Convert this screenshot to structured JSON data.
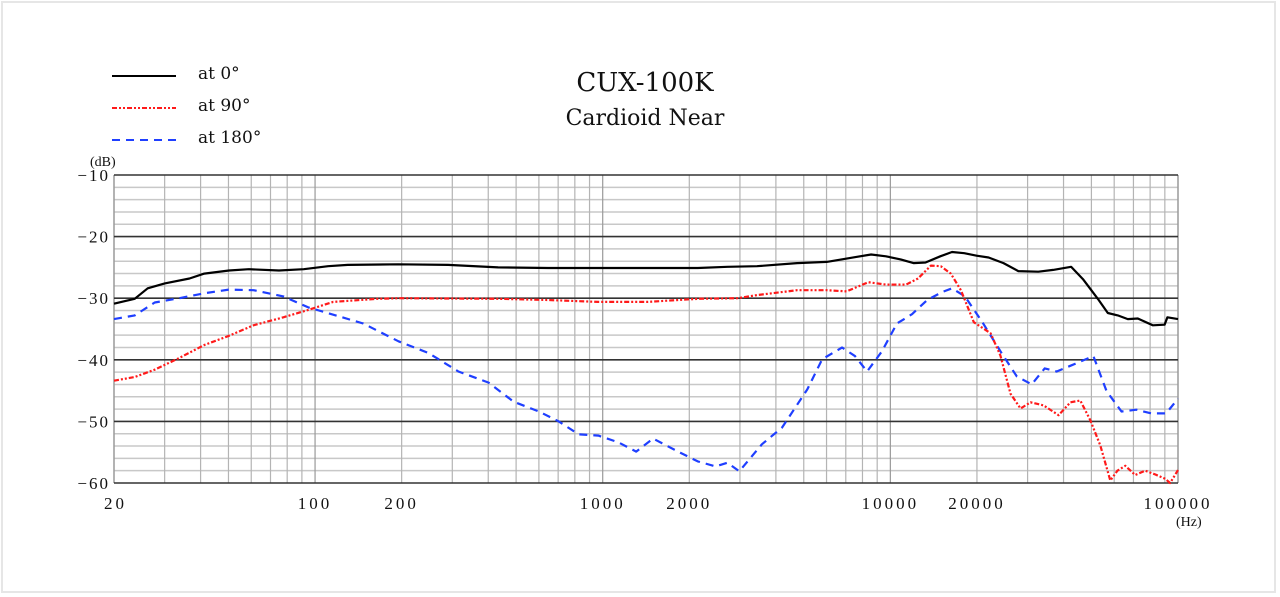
{
  "chart_data": {
    "type": "line",
    "title": "CUX-100K",
    "subtitle": "Cardioid Near",
    "xlabel": "(Hz)",
    "ylabel": "(dB)",
    "xscale": "log",
    "xlim": [
      20,
      100000
    ],
    "ylim": [
      -60,
      -10
    ],
    "x_tick_labels": [
      "20",
      "100",
      "200",
      "1000",
      "2000",
      "10000",
      "20000",
      "100000"
    ],
    "y_tick_labels": [
      "-10",
      "-20",
      "-30",
      "-40",
      "-50",
      "-60"
    ],
    "grid": true,
    "legend_position": "top-left",
    "series": [
      {
        "name": "at 0°",
        "color": "#000000",
        "style": "solid",
        "points": [
          [
            20,
            -30.9
          ],
          [
            23.6,
            -30.1
          ],
          [
            26.2,
            -28.4
          ],
          [
            30.0,
            -27.6
          ],
          [
            36.6,
            -26.8
          ],
          [
            41.2,
            -26.0
          ],
          [
            50.2,
            -25.5
          ],
          [
            58.9,
            -25.3
          ],
          [
            74.9,
            -25.5
          ],
          [
            91.3,
            -25.3
          ],
          [
            111,
            -24.8
          ],
          [
            130,
            -24.6
          ],
          [
            195,
            -24.5
          ],
          [
            290,
            -24.6
          ],
          [
            433,
            -25.0
          ],
          [
            646,
            -25.1
          ],
          [
            963,
            -25.1
          ],
          [
            1436,
            -25.1
          ],
          [
            2141,
            -25.1
          ],
          [
            2714,
            -24.9
          ],
          [
            3440,
            -24.8
          ],
          [
            4739,
            -24.3
          ],
          [
            6006,
            -24.1
          ],
          [
            7612,
            -23.3
          ],
          [
            8569,
            -22.9
          ],
          [
            9647,
            -23.2
          ],
          [
            10860,
            -23.7
          ],
          [
            12040,
            -24.3
          ],
          [
            13250,
            -24.2
          ],
          [
            14910,
            -23.2
          ],
          [
            16380,
            -22.5
          ],
          [
            18080,
            -22.7
          ],
          [
            19950,
            -23.1
          ],
          [
            21960,
            -23.4
          ],
          [
            24740,
            -24.3
          ],
          [
            27850,
            -25.6
          ],
          [
            32690,
            -25.7
          ],
          [
            36810,
            -25.4
          ],
          [
            42510,
            -24.9
          ],
          [
            46720,
            -26.9
          ],
          [
            52620,
            -30.1
          ],
          [
            57010,
            -32.4
          ],
          [
            61770,
            -32.8
          ],
          [
            66920,
            -33.4
          ],
          [
            72500,
            -33.3
          ],
          [
            81640,
            -34.4
          ],
          [
            89800,
            -34.3
          ],
          [
            91900,
            -33.1
          ],
          [
            100000,
            -33.4
          ]
        ]
      },
      {
        "name": "at 90°",
        "color": "#ff1a1a",
        "style": "dash-dot-dot",
        "points": [
          [
            20,
            -43.4
          ],
          [
            23.6,
            -42.8
          ],
          [
            27.7,
            -41.6
          ],
          [
            33.7,
            -39.7
          ],
          [
            41.2,
            -37.6
          ],
          [
            50.2,
            -36.1
          ],
          [
            61.1,
            -34.4
          ],
          [
            77.6,
            -33.1
          ],
          [
            94.7,
            -31.9
          ],
          [
            115.5,
            -30.6
          ],
          [
            165,
            -30.1
          ],
          [
            195,
            -30.0
          ],
          [
            433,
            -30.1
          ],
          [
            646,
            -30.3
          ],
          [
            963,
            -30.6
          ],
          [
            1436,
            -30.6
          ],
          [
            2141,
            -30.1
          ],
          [
            2946,
            -30.0
          ],
          [
            3440,
            -29.5
          ],
          [
            4739,
            -28.7
          ],
          [
            6006,
            -28.7
          ],
          [
            7046,
            -28.9
          ],
          [
            8385,
            -27.4
          ],
          [
            9647,
            -27.8
          ],
          [
            11340,
            -27.8
          ],
          [
            12480,
            -26.8
          ],
          [
            13840,
            -24.7
          ],
          [
            14980,
            -24.8
          ],
          [
            16230,
            -26.0
          ],
          [
            17590,
            -28.7
          ],
          [
            19500,
            -33.9
          ],
          [
            22310,
            -35.7
          ],
          [
            24140,
            -39.3
          ],
          [
            26170,
            -45.5
          ],
          [
            28340,
            -47.9
          ],
          [
            30700,
            -46.9
          ],
          [
            34100,
            -47.4
          ],
          [
            38440,
            -49.0
          ],
          [
            42250,
            -46.9
          ],
          [
            45760,
            -46.6
          ],
          [
            49560,
            -49.8
          ],
          [
            53700,
            -53.9
          ],
          [
            58170,
            -59.6
          ],
          [
            61550,
            -58.0
          ],
          [
            65560,
            -57.2
          ],
          [
            70970,
            -58.7
          ],
          [
            76880,
            -58.0
          ],
          [
            83270,
            -58.6
          ],
          [
            90200,
            -59.3
          ],
          [
            93900,
            -60.0
          ],
          [
            100000,
            -57.9
          ]
        ]
      },
      {
        "name": "at 180°",
        "color": "#1f3fff",
        "style": "dashed",
        "points": [
          [
            20,
            -33.4
          ],
          [
            23.6,
            -32.8
          ],
          [
            27.7,
            -30.7
          ],
          [
            33.7,
            -30.0
          ],
          [
            41.2,
            -29.2
          ],
          [
            50.2,
            -28.6
          ],
          [
            61.1,
            -28.7
          ],
          [
            77.6,
            -29.7
          ],
          [
            94.7,
            -31.5
          ],
          [
            120.3,
            -32.9
          ],
          [
            147,
            -34.1
          ],
          [
            195,
            -37.0
          ],
          [
            248,
            -38.9
          ],
          [
            315,
            -41.9
          ],
          [
            401,
            -43.7
          ],
          [
            490,
            -46.8
          ],
          [
            600,
            -48.4
          ],
          [
            703,
            -50.0
          ],
          [
            824,
            -52.1
          ],
          [
            966,
            -52.3
          ],
          [
            1133,
            -53.4
          ],
          [
            1307,
            -54.9
          ],
          [
            1497,
            -52.8
          ],
          [
            1828,
            -54.9
          ],
          [
            2141,
            -56.5
          ],
          [
            2468,
            -57.3
          ],
          [
            2714,
            -56.7
          ],
          [
            2985,
            -58.1
          ],
          [
            3578,
            -53.7
          ],
          [
            4202,
            -51.0
          ],
          [
            5145,
            -44.8
          ],
          [
            5797,
            -39.9
          ],
          [
            6796,
            -38.0
          ],
          [
            7536,
            -39.4
          ],
          [
            8299,
            -41.9
          ],
          [
            9350,
            -38.6
          ],
          [
            10540,
            -34.1
          ],
          [
            11890,
            -32.6
          ],
          [
            13430,
            -30.3
          ],
          [
            15140,
            -29.0
          ],
          [
            16400,
            -28.4
          ],
          [
            18160,
            -29.7
          ],
          [
            20820,
            -33.8
          ],
          [
            24420,
            -39.0
          ],
          [
            27510,
            -42.7
          ],
          [
            30990,
            -44.0
          ],
          [
            34410,
            -41.4
          ],
          [
            37860,
            -41.9
          ],
          [
            42620,
            -40.9
          ],
          [
            50820,
            -39.4
          ],
          [
            56470,
            -45.1
          ],
          [
            63610,
            -48.4
          ],
          [
            71650,
            -48.1
          ],
          [
            80720,
            -48.7
          ],
          [
            90930,
            -48.7
          ],
          [
            100000,
            -46.3
          ]
        ]
      }
    ]
  },
  "legend": [
    {
      "label": "at 0°",
      "color": "#000000",
      "dash": ""
    },
    {
      "label": "at 90°",
      "color": "#ff1a1a",
      "dash": "5 2 2 2 2 2"
    },
    {
      "label": "at 180°",
      "color": "#1f3fff",
      "dash": "8 6"
    }
  ],
  "header": {
    "title": "CUX-100K",
    "subtitle": "Cardioid Near"
  }
}
